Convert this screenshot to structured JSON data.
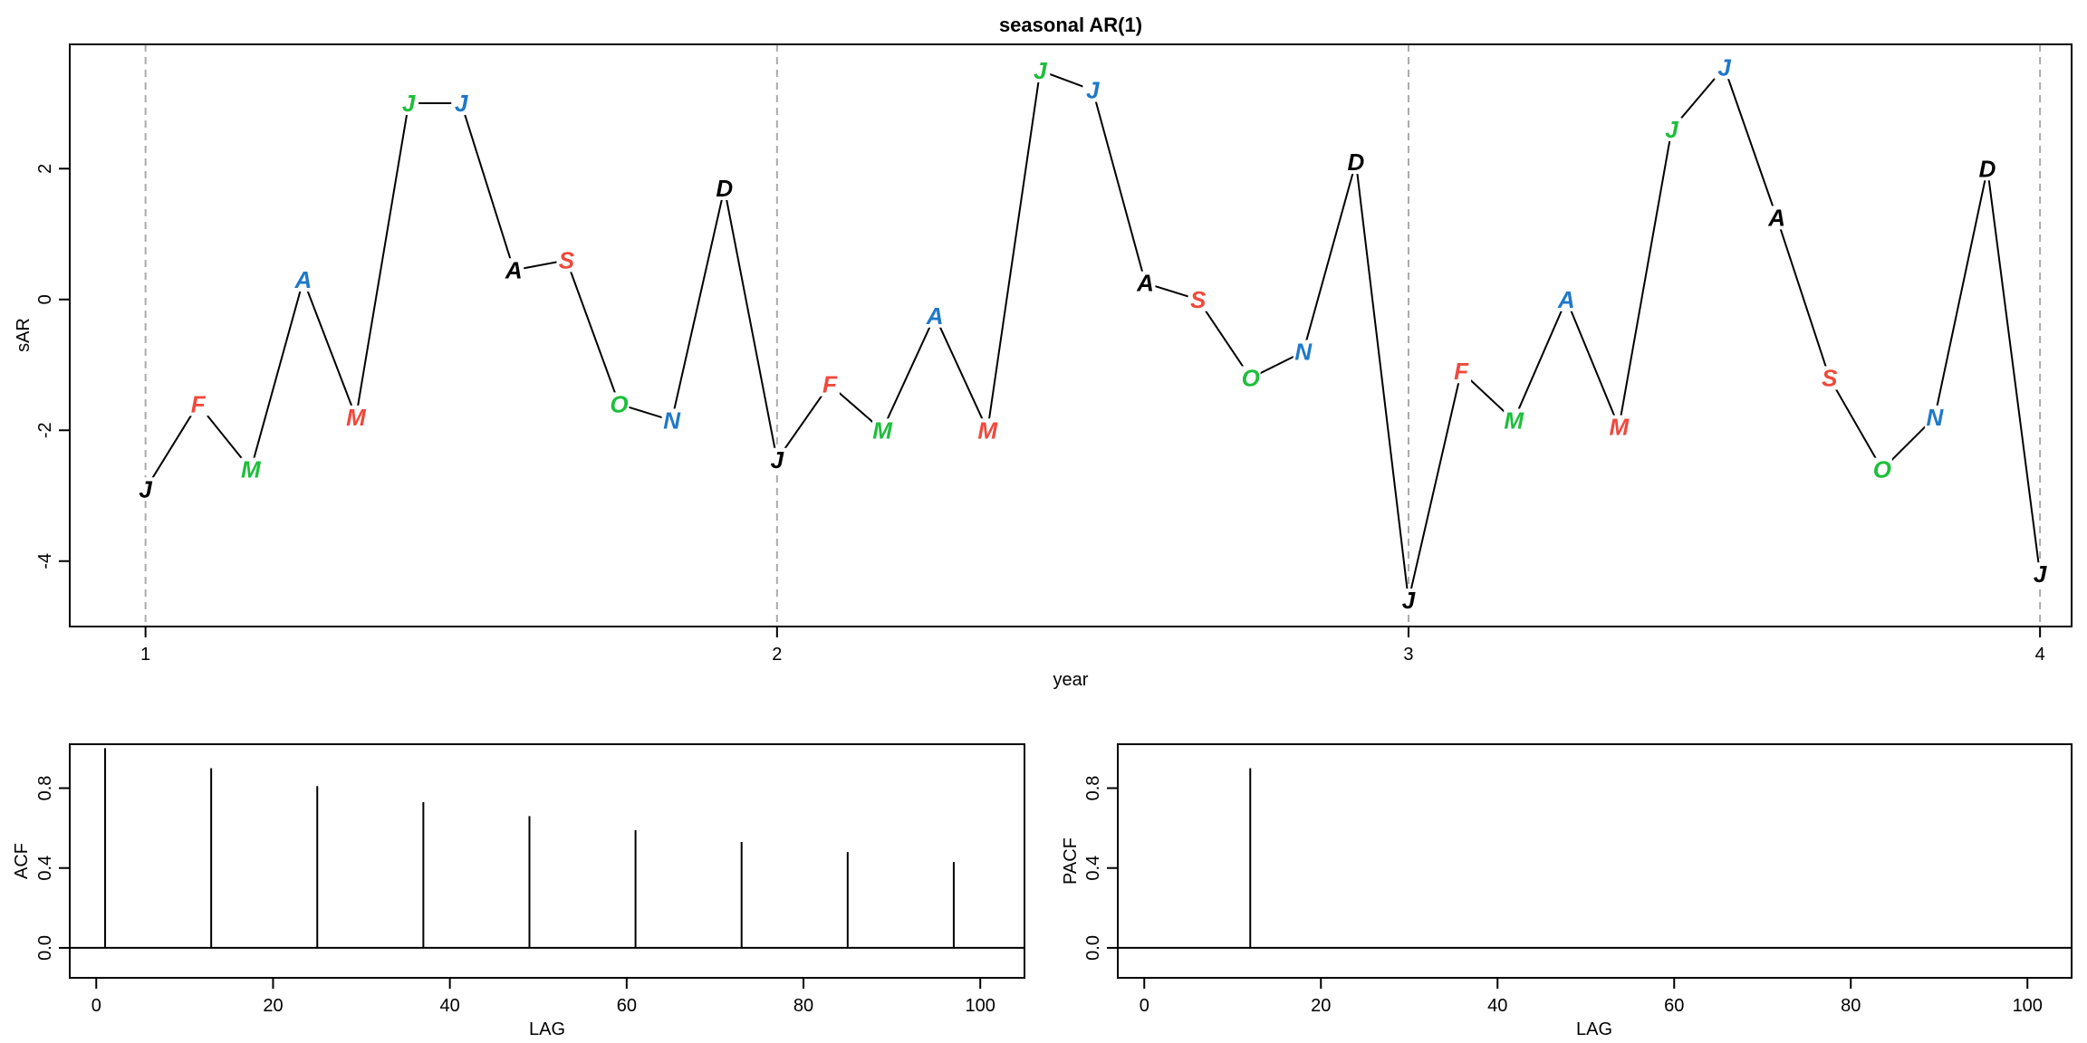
{
  "chart_data": [
    {
      "type": "line",
      "title": "seasonal AR(1)",
      "xlabel": "year",
      "ylabel": "sAR",
      "xlim": [
        0.88,
        4.05
      ],
      "ylim": [
        -5.0,
        3.9
      ],
      "x_ticks": [
        1,
        2,
        3,
        4
      ],
      "x_tick_labels": [
        "1",
        "2",
        "3",
        "4"
      ],
      "y_ticks": [
        -4,
        -2,
        0,
        2
      ],
      "y_tick_labels": [
        "-4",
        "-2",
        "0",
        "2"
      ],
      "vertical_reference_lines": [
        1,
        2,
        3,
        4
      ],
      "colors": {
        "black": "#000000",
        "red": "#F0483C",
        "green": "#1DBF3A",
        "blue": "#1E78C8",
        "ref_line": "#AAAAAA"
      },
      "month_colors": [
        "black",
        "red",
        "green",
        "blue",
        "red",
        "green",
        "blue",
        "black",
        "red",
        "green",
        "blue",
        "black"
      ],
      "series": [
        {
          "x": [
            1.0,
            1.0833,
            1.1667,
            1.25,
            1.3333,
            1.4167,
            1.5,
            1.5833,
            1.6667,
            1.75,
            1.8333,
            1.9167,
            2.0,
            2.0833,
            2.1667,
            2.25,
            2.3333,
            2.4167,
            2.5,
            2.5833,
            2.6667,
            2.75,
            2.8333,
            2.9167,
            3.0,
            3.0833,
            3.1667,
            3.25,
            3.3333,
            3.4167,
            3.5,
            3.5833,
            3.6667,
            3.75,
            3.8333,
            3.9167,
            4.0
          ],
          "y": [
            -2.9,
            -1.6,
            -2.6,
            0.3,
            -1.8,
            3.0,
            3.0,
            0.45,
            0.6,
            -1.6,
            -1.85,
            1.7,
            -2.45,
            -1.3,
            -2.0,
            -0.25,
            -2.0,
            3.5,
            3.2,
            0.25,
            0.0,
            -1.2,
            -0.8,
            2.1,
            -4.6,
            -1.1,
            -1.85,
            0.0,
            -1.95,
            2.6,
            3.55,
            1.25,
            -1.2,
            -2.6,
            -1.8,
            2.0,
            -4.2
          ],
          "labels": [
            "J",
            "F",
            "M",
            "A",
            "M",
            "J",
            "J",
            "A",
            "S",
            "O",
            "N",
            "D",
            "J",
            "F",
            "M",
            "A",
            "M",
            "J",
            "J",
            "A",
            "S",
            "O",
            "N",
            "D",
            "J",
            "F",
            "M",
            "A",
            "M",
            "J",
            "J",
            "A",
            "S",
            "O",
            "N",
            "D",
            "J"
          ]
        }
      ]
    },
    {
      "type": "bar",
      "title": "",
      "xlabel": "LAG",
      "ylabel": "ACF",
      "xlim": [
        -3,
        105
      ],
      "ylim": [
        -0.15,
        1.02
      ],
      "x_ticks": [
        0,
        20,
        40,
        60,
        80,
        100
      ],
      "x_tick_labels": [
        "0",
        "20",
        "40",
        "60",
        "80",
        "100"
      ],
      "y_ticks": [
        0.0,
        0.4,
        0.8
      ],
      "y_tick_labels": [
        "0.0",
        "0.4",
        "0.8"
      ],
      "x": [
        1,
        13,
        25,
        37,
        49,
        61,
        73,
        85,
        97
      ],
      "values": [
        1.0,
        0.9,
        0.81,
        0.73,
        0.66,
        0.59,
        0.53,
        0.48,
        0.43
      ]
    },
    {
      "type": "bar",
      "title": "",
      "xlabel": "LAG",
      "ylabel": "PACF",
      "xlim": [
        -3,
        105
      ],
      "ylim": [
        -0.15,
        1.02
      ],
      "x_ticks": [
        0,
        20,
        40,
        60,
        80,
        100
      ],
      "x_tick_labels": [
        "0",
        "20",
        "40",
        "60",
        "80",
        "100"
      ],
      "y_ticks": [
        0.0,
        0.4,
        0.8
      ],
      "y_tick_labels": [
        "0.0",
        "0.4",
        "0.8"
      ],
      "x": [
        12
      ],
      "values": [
        0.9
      ]
    }
  ]
}
